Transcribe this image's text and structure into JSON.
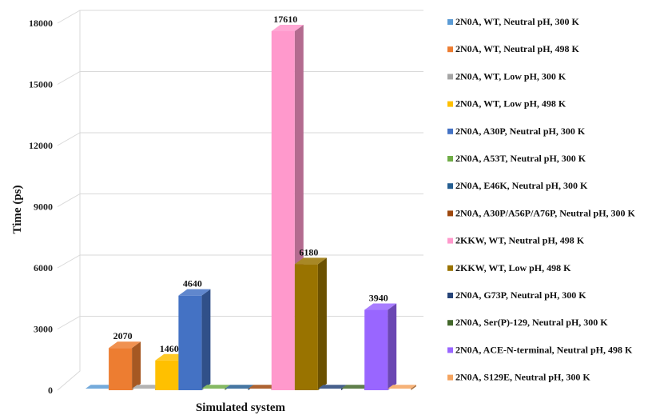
{
  "chart_data": {
    "type": "bar",
    "style": "3d-clustered-column",
    "xlabel": "Simulated system",
    "ylabel": "Time (ps)",
    "ylim": [
      0,
      18000
    ],
    "yticks": [
      0,
      3000,
      6000,
      9000,
      12000,
      15000,
      18000
    ],
    "grid": true,
    "legend_position": "right",
    "series": [
      {
        "name": "2N0A, WT,  Neutral pH, 300 K",
        "value": 0,
        "color": "#5b9bd5"
      },
      {
        "name": "2N0A, WT, Neutral pH, 498 K",
        "value": 2070,
        "color": "#ed7d31"
      },
      {
        "name": "2N0A, WT, Low pH, 300 K",
        "value": 0,
        "color": "#a5a5a5"
      },
      {
        "name": "2N0A, WT, Low pH, 498 K",
        "value": 1460,
        "color": "#ffc000"
      },
      {
        "name": "2N0A, A30P, Neutral pH, 300 K",
        "value": 4640,
        "color": "#4472c4"
      },
      {
        "name": "2N0A, A53T, Neutral pH, 300 K",
        "value": 0,
        "color": "#70ad47"
      },
      {
        "name": "2N0A, E46K, Neutral pH, 300 K",
        "value": 0,
        "color": "#255e91"
      },
      {
        "name": "2N0A, A30P/A56P/A76P, Neutral pH, 300 K",
        "value": 0,
        "color": "#9e480e"
      },
      {
        "name": "2KKW, WT, Neutral pH, 498 K",
        "value": 17610,
        "color": "#ff99cc"
      },
      {
        "name": "2KKW, WT, Low pH, 498 K",
        "value": 6180,
        "color": "#997300"
      },
      {
        "name": "2N0A, G73P, Neutral pH, 300 K",
        "value": 0,
        "color": "#264478"
      },
      {
        "name": "2N0A, Ser(P)-129, Neutral pH, 300 K",
        "value": 0,
        "color": "#43682b"
      },
      {
        "name": "2N0A, ACE-N-terminal, Neutral pH, 498 K",
        "value": 3940,
        "color": "#9966ff"
      },
      {
        "name": "2N0A, S129E, Neutral pH, 300 K",
        "value": 0,
        "color": "#f4a460"
      }
    ],
    "data_labels": [
      "2070",
      "1460",
      "4640",
      "17610",
      "6180",
      "3940"
    ]
  }
}
